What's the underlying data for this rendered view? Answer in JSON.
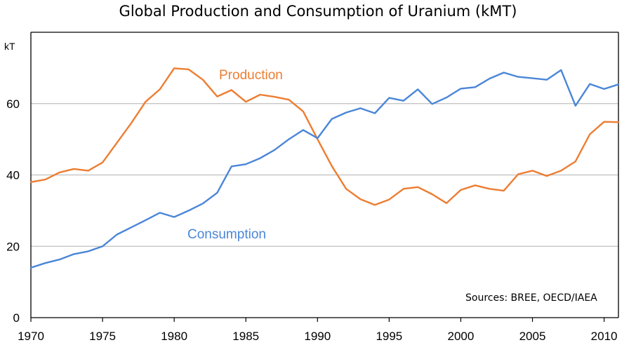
{
  "chart_data": {
    "type": "line",
    "title": "Global Production and Consumption of Uranium (kMT)",
    "ylabel": "kT",
    "xlabel": "",
    "xlim": [
      1970,
      2011
    ],
    "ylim": [
      0,
      80
    ],
    "grid": true,
    "x_ticks": [
      "1970",
      "1975",
      "1980",
      "1985",
      "1990",
      "1995",
      "2000",
      "2005",
      "2010"
    ],
    "y_ticks": [
      "0",
      "20",
      "40",
      "60"
    ],
    "x": [
      1970,
      1971,
      1972,
      1973,
      1974,
      1975,
      1976,
      1977,
      1978,
      1979,
      1980,
      1981,
      1982,
      1983,
      1984,
      1985,
      1986,
      1987,
      1988,
      1989,
      1990,
      1991,
      1992,
      1993,
      1994,
      1995,
      1996,
      1997,
      1998,
      1999,
      2000,
      2001,
      2002,
      2003,
      2004,
      2005,
      2006,
      2007,
      2008,
      2009,
      2010,
      2011
    ],
    "series": [
      {
        "name": "Production",
        "color": "#ed7d31",
        "values": [
          38,
          38.7,
          40.7,
          41.7,
          41.2,
          43.5,
          49,
          54.5,
          60.5,
          64,
          69.9,
          69.6,
          66.7,
          62,
          63.8,
          60.5,
          62.5,
          61.9,
          61.1,
          57.8,
          50,
          42.5,
          36.1,
          33.2,
          31.6,
          33.1,
          36.1,
          36.6,
          34.6,
          32.1,
          35.8,
          37.1,
          36.1,
          35.6,
          40.2,
          41.2,
          39.7,
          41.2,
          43.8,
          51.4,
          54.9,
          54.8
        ]
      },
      {
        "name": "Consumption",
        "color": "#4a86d8",
        "values": [
          14,
          15.3,
          16.3,
          17.8,
          18.6,
          20,
          23.3,
          25.3,
          27.3,
          29.4,
          28.2,
          30,
          32,
          35,
          42.4,
          43,
          44.7,
          47,
          50,
          52.6,
          50.3,
          55.7,
          57.5,
          58.7,
          57.3,
          61.6,
          60.8,
          64,
          59.9,
          61.7,
          64.2,
          64.6,
          67,
          68.7,
          67.5,
          67.1,
          66.7,
          69.4,
          59.4,
          65.5,
          64.1,
          65.4
        ]
      }
    ],
    "source_note": "Sources: BREE, OECD/IAEA"
  }
}
